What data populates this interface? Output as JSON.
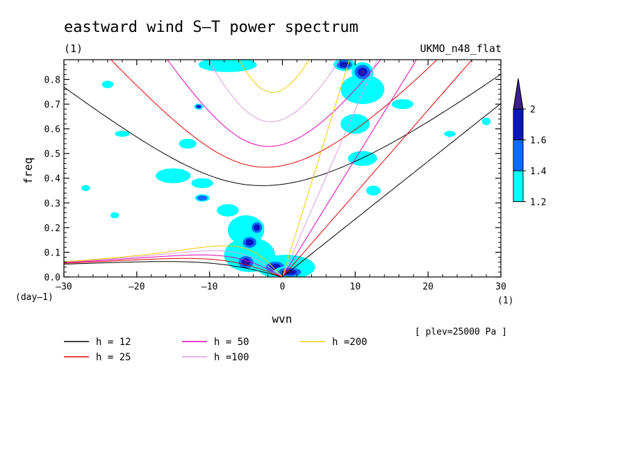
{
  "chart_data": {
    "type": "heatmap",
    "title": "eastward wind S–T power spectrum",
    "subtitle_left": "(1)",
    "subtitle_right": "UKMO_n48_flat",
    "xlabel": "wvn",
    "ylabel": "freq",
    "x_unit": "(1)",
    "y_unit": "(day–1)",
    "xlim": [
      -30,
      30
    ],
    "ylim": [
      0,
      0.88
    ],
    "xticks": [
      -30,
      -20,
      -10,
      0,
      10,
      20,
      30
    ],
    "xtick_labels": [
      "–30",
      "–20",
      "–10",
      "0",
      "10",
      "20",
      "30"
    ],
    "yticks": [
      0,
      0.1,
      0.2,
      0.3,
      0.4,
      0.5,
      0.6,
      0.7,
      0.8
    ],
    "ytick_labels": [
      "0.0",
      "0.1",
      "0.2",
      "0.3",
      "0.4",
      "0.5",
      "0.6",
      "0.7",
      "0.8"
    ],
    "annotation": "[ plev=25000 Pa ]",
    "colorbar": {
      "levels": [
        "1.2",
        "1.4",
        "1.6",
        "2"
      ],
      "colors": [
        "#00ffff",
        "#0a6cff",
        "#0a14c0",
        "#3c1e8c"
      ]
    },
    "contours": [
      {
        "x": -5,
        "y": 0.06,
        "rx": 1.4,
        "ry": 0.035,
        "level": 4
      },
      {
        "x": -4.5,
        "y": 0.14,
        "rx": 1.3,
        "ry": 0.03,
        "level": 3
      },
      {
        "x": -3.5,
        "y": 0.2,
        "rx": 1.0,
        "ry": 0.03,
        "level": 3
      },
      {
        "x": -1,
        "y": 0.04,
        "rx": 1.8,
        "ry": 0.03,
        "level": 3
      },
      {
        "x": 1,
        "y": 0.02,
        "rx": 2.2,
        "ry": 0.025,
        "level": 4
      },
      {
        "x": 8.5,
        "y": 0.86,
        "rx": 1.5,
        "ry": 0.025,
        "level": 4
      },
      {
        "x": 11,
        "y": 0.83,
        "rx": 1.5,
        "ry": 0.04,
        "level": 4
      },
      {
        "x": -7.5,
        "y": 0.86,
        "rx": 4,
        "ry": 0.03,
        "level": 1
      },
      {
        "x": -13,
        "y": 0.54,
        "rx": 1.2,
        "ry": 0.02,
        "level": 1
      },
      {
        "x": -11.5,
        "y": 0.69,
        "rx": 0.6,
        "ry": 0.012,
        "level": 3
      },
      {
        "x": -15,
        "y": 0.41,
        "rx": 2.4,
        "ry": 0.03,
        "level": 1
      },
      {
        "x": -11,
        "y": 0.38,
        "rx": 1.5,
        "ry": 0.02,
        "level": 1
      },
      {
        "x": -11,
        "y": 0.32,
        "rx": 1.0,
        "ry": 0.015,
        "level": 2
      },
      {
        "x": -7.5,
        "y": 0.27,
        "rx": 1.5,
        "ry": 0.025,
        "level": 1
      },
      {
        "x": -5,
        "y": 0.19,
        "rx": 2.5,
        "ry": 0.06,
        "level": 1
      },
      {
        "x": -4.5,
        "y": 0.09,
        "rx": 3.5,
        "ry": 0.07,
        "level": 1
      },
      {
        "x": 0.5,
        "y": 0.04,
        "rx": 4,
        "ry": 0.05,
        "level": 1
      },
      {
        "x": 11,
        "y": 0.76,
        "rx": 3,
        "ry": 0.06,
        "level": 1
      },
      {
        "x": 10,
        "y": 0.62,
        "rx": 2,
        "ry": 0.04,
        "level": 1
      },
      {
        "x": 11,
        "y": 0.48,
        "rx": 2,
        "ry": 0.03,
        "level": 1
      },
      {
        "x": 12.5,
        "y": 0.35,
        "rx": 1.0,
        "ry": 0.02,
        "level": 1
      },
      {
        "x": 16.5,
        "y": 0.7,
        "rx": 1.5,
        "ry": 0.02,
        "level": 1
      },
      {
        "x": -22,
        "y": 0.58,
        "rx": 1.0,
        "ry": 0.012,
        "level": 1
      },
      {
        "x": -27,
        "y": 0.36,
        "rx": 0.6,
        "ry": 0.012,
        "level": 1
      },
      {
        "x": -23,
        "y": 0.25,
        "rx": 0.6,
        "ry": 0.012,
        "level": 1
      },
      {
        "x": 23,
        "y": 0.58,
        "rx": 0.8,
        "ry": 0.012,
        "level": 1
      },
      {
        "x": 28,
        "y": 0.63,
        "rx": 0.6,
        "ry": 0.015,
        "level": 1
      },
      {
        "x": -24,
        "y": 0.78,
        "rx": 0.8,
        "ry": 0.015,
        "level": 1
      }
    ],
    "series": [
      {
        "name": "h = 12",
        "h": 12,
        "color": "#000000"
      },
      {
        "name": "h = 25",
        "h": 25,
        "color": "#e00000"
      },
      {
        "name": "h = 50",
        "h": 50,
        "color": "#e000b4"
      },
      {
        "name": "h =100",
        "h": 100,
        "color": "#dc9cdc"
      },
      {
        "name": "h =200",
        "h": 200,
        "color": "#f0c800"
      }
    ]
  }
}
